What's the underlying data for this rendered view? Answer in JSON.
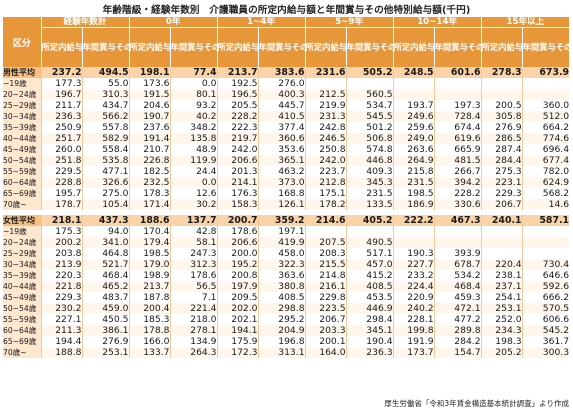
{
  "title": "年齢階級・経験年数別　介護職員の所定内給与額と年間賞与その他特別給与額(千円)",
  "header": {
    "corner_top": "経験年数計",
    "corner_label": "区分",
    "groups": [
      "0年",
      "1~4年",
      "5~9年",
      "10~14年",
      "15年以上"
    ],
    "sub_labels": [
      "所定内給与額",
      "年間賞与その他特別給与額"
    ]
  },
  "male_section": {
    "rows": [
      {
        "label": "男性平均",
        "values": [
          "237.2",
          "494.5",
          "198.1",
          "77.4",
          "213.7",
          "383.6",
          "231.6",
          "505.2",
          "248.5",
          "601.6",
          "278.3",
          "673.9"
        ]
      },
      {
        "label": "~19歳",
        "values": [
          "177.3",
          "55.0",
          "173.6",
          "0.0",
          "192.5",
          "276.0",
          "",
          "",
          "",
          "",
          "",
          ""
        ]
      },
      {
        "label": "20~24歳",
        "values": [
          "196.7",
          "310.3",
          "191.5",
          "80.1",
          "196.5",
          "400.3",
          "212.5",
          "560.5",
          "",
          "",
          "",
          ""
        ]
      },
      {
        "label": "25~29歳",
        "values": [
          "211.7",
          "434.7",
          "204.6",
          "93.2",
          "205.5",
          "445.7",
          "219.9",
          "534.7",
          "193.7",
          "197.3",
          "200.5",
          "360.0"
        ]
      },
      {
        "label": "30~34歳",
        "values": [
          "236.3",
          "566.2",
          "190.7",
          "40.2",
          "228.2",
          "410.5",
          "231.3",
          "545.5",
          "249.6",
          "728.4",
          "305.8",
          "512.0"
        ]
      },
      {
        "label": "35~39歳",
        "values": [
          "250.9",
          "557.8",
          "237.6",
          "348.2",
          "222.3",
          "377.4",
          "242.8",
          "501.2",
          "259.6",
          "674.4",
          "276.9",
          "664.2"
        ]
      },
      {
        "label": "40~44歳",
        "values": [
          "251.7",
          "582.9",
          "191.4",
          "135.8",
          "219.7",
          "360.6",
          "246.5",
          "506.8",
          "249.0",
          "619.6",
          "286.5",
          "774.6"
        ]
      },
      {
        "label": "45~49歳",
        "values": [
          "260.0",
          "558.4",
          "210.7",
          "48.9",
          "242.0",
          "353.6",
          "250.8",
          "574.8",
          "263.6",
          "665.9",
          "287.4",
          "696.4"
        ]
      },
      {
        "label": "50~54歳",
        "values": [
          "251.8",
          "535.8",
          "226.8",
          "119.9",
          "206.6",
          "365.1",
          "242.0",
          "446.8",
          "264.9",
          "481.5",
          "284.4",
          "677.4"
        ]
      },
      {
        "label": "55~59歳",
        "values": [
          "229.5",
          "477.1",
          "182.5",
          "24.4",
          "201.3",
          "463.2",
          "223.7",
          "409.3",
          "215.8",
          "266.7",
          "275.3",
          "782.0"
        ]
      },
      {
        "label": "60~64歳",
        "values": [
          "228.8",
          "326.6",
          "232.5",
          "0.0",
          "214.1",
          "373.0",
          "212.8",
          "345.3",
          "231.5",
          "394.2",
          "223.1",
          "624.9"
        ]
      },
      {
        "label": "65~69歳",
        "values": [
          "195.7",
          "275.0",
          "178.3",
          "12.6",
          "176.3",
          "168.8",
          "175.1",
          "231.5",
          "198.5",
          "228.2",
          "229.3",
          "568.2"
        ]
      },
      {
        "label": "70歳~",
        "values": [
          "178.7",
          "105.4",
          "171.4",
          "30.2",
          "158.3",
          "126.1",
          "178.2",
          "133.5",
          "186.9",
          "330.6",
          "206.7",
          "14.6"
        ]
      }
    ]
  },
  "female_section": {
    "rows": [
      {
        "label": "女性平均",
        "values": [
          "218.1",
          "437.3",
          "188.6",
          "137.7",
          "200.7",
          "359.2",
          "214.6",
          "405.2",
          "222.2",
          "467.3",
          "240.1",
          "587.1"
        ]
      },
      {
        "label": "~19歳",
        "values": [
          "175.3",
          "94.0",
          "170.4",
          "42.8",
          "178.6",
          "197.1",
          "",
          "",
          "",
          "",
          "",
          ""
        ]
      },
      {
        "label": "20~24歳",
        "values": [
          "200.2",
          "341.0",
          "179.4",
          "58.1",
          "206.6",
          "419.9",
          "207.5",
          "490.5",
          "",
          "",
          "",
          ""
        ]
      },
      {
        "label": "25~29歳",
        "values": [
          "203.8",
          "464.8",
          "198.5",
          "247.3",
          "200.0",
          "458.0",
          "208.3",
          "517.1",
          "190.3",
          "393.9",
          "",
          ""
        ]
      },
      {
        "label": "30~34歳",
        "values": [
          "213.9",
          "521.7",
          "179.0",
          "312.3",
          "195.2",
          "322.3",
          "215.5",
          "457.0",
          "227.7",
          "678.7",
          "220.4",
          "730.4"
        ]
      },
      {
        "label": "35~39歳",
        "values": [
          "220.3",
          "468.4",
          "198.9",
          "178.6",
          "200.8",
          "363.6",
          "214.8",
          "415.2",
          "233.2",
          "534.2",
          "238.1",
          "646.6"
        ]
      },
      {
        "label": "40~44歳",
        "values": [
          "221.8",
          "465.2",
          "213.7",
          "56.5",
          "197.9",
          "380.8",
          "216.1",
          "408.5",
          "224.4",
          "468.4",
          "237.1",
          "592.6"
        ]
      },
      {
        "label": "45~49歳",
        "values": [
          "229.3",
          "483.7",
          "187.8",
          "7.1",
          "209.5",
          "408.5",
          "229.8",
          "453.5",
          "220.9",
          "459.3",
          "254.1",
          "666.2"
        ]
      },
      {
        "label": "50~54歳",
        "values": [
          "230.2",
          "459.0",
          "200.4",
          "221.4",
          "202.0",
          "298.8",
          "223.5",
          "446.9",
          "240.2",
          "472.1",
          "253.1",
          "570.5"
        ]
      },
      {
        "label": "55~59歳",
        "values": [
          "227.1",
          "450.5",
          "185.3",
          "218.0",
          "202.1",
          "295.2",
          "206.7",
          "298.4",
          "228.1",
          "477.2",
          "252.0",
          "606.6"
        ]
      },
      {
        "label": "60~64歳",
        "values": [
          "211.3",
          "386.1",
          "178.8",
          "278.1",
          "194.1",
          "204.9",
          "203.3",
          "345.1",
          "199.8",
          "289.8",
          "234.3",
          "545.2"
        ]
      },
      {
        "label": "65~69歳",
        "values": [
          "194.4",
          "276.9",
          "166.0",
          "134.9",
          "175.9",
          "196.8",
          "200.1",
          "190.4",
          "191.9",
          "284.2",
          "198.3",
          "361.7"
        ]
      },
      {
        "label": "70歳~",
        "values": [
          "188.8",
          "253.1",
          "133.7",
          "264.3",
          "172.3",
          "313.1",
          "164.0",
          "236.3",
          "173.7",
          "154.7",
          "205.2",
          "300.3"
        ]
      }
    ]
  },
  "source_note": "厚生労働省「令和3年賃金構造基本統計調査」より作成"
}
